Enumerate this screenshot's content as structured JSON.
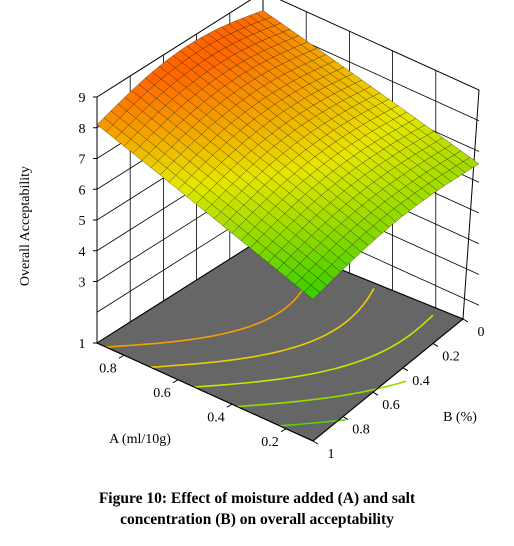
{
  "chart_data": {
    "type": "3d-surface",
    "zlabel": "Overall Acceptability",
    "xlabel": "A (ml/10g)",
    "ylabel": "B (%)",
    "z_ticks": [
      "1",
      "3",
      "4",
      "5",
      "6",
      "7",
      "8",
      "9"
    ],
    "x_ticks": [
      "0.2",
      "0.4",
      "0.6",
      "0.8"
    ],
    "y_ticks": [
      "0",
      "0.2",
      "0.4",
      "0.6",
      "0.8",
      "1"
    ],
    "zlim": [
      1,
      9
    ],
    "xlim": [
      0.1,
      0.9
    ],
    "ylim": [
      0,
      1
    ],
    "surface": {
      "A": [
        0.9,
        0.1
      ],
      "B": [
        0,
        1
      ],
      "corner_values": {
        "A0.9_B0": 8.1,
        "A0.1_B0": 8.4,
        "A0.9_B1": 5.7,
        "A0.1_B1": 6.7
      },
      "peak": 8.6
    },
    "contour_levels": [
      6,
      6.5,
      7,
      7.5,
      8
    ],
    "colors": {
      "floor": "#666666",
      "low": "#33cc00",
      "mid": "#e6e600",
      "high": "#ff6600"
    },
    "grid": true
  },
  "caption": {
    "line1": "Figure 10: Effect of moisture added (A) and salt",
    "line2": "concentration (B) on overall acceptability"
  }
}
